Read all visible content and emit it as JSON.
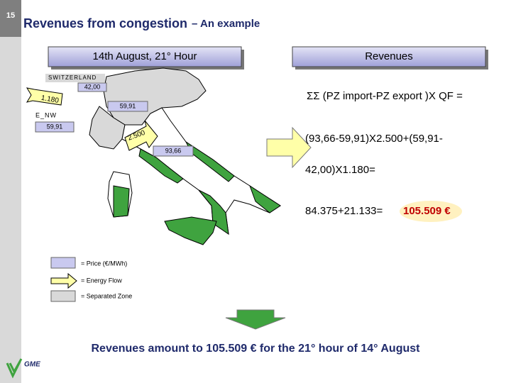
{
  "slide_number": "15",
  "title": "Revenues from congestion",
  "subtitle": "– An example",
  "header_left": "14th August, 21° Hour",
  "header_right": "Revenues",
  "map": {
    "switzerland": "SWITZERLAND",
    "switzerland_price": "42,00",
    "flow_north": "1.180",
    "north_price": "59,91",
    "nw_zone": "E_NW",
    "nw_price": "59,91",
    "flow_center": "2.500",
    "center_price": "93,66"
  },
  "formula": {
    "line1": "ΣΣ (PZ import-PZ export )X QF =",
    "line2": "(93,66-59,91)X2.500+(59,91-",
    "line3": "42,00)X1.180=",
    "line4": "84.375+21.133=",
    "result": "105.509 €"
  },
  "legend": {
    "price": "= Price (€/MWh)",
    "flow": "= Energy Flow",
    "zone": "= Separated Zone"
  },
  "conclusion": "Revenues amount to 105.509 € for the 21° hour of 14° August",
  "logo": "GME"
}
